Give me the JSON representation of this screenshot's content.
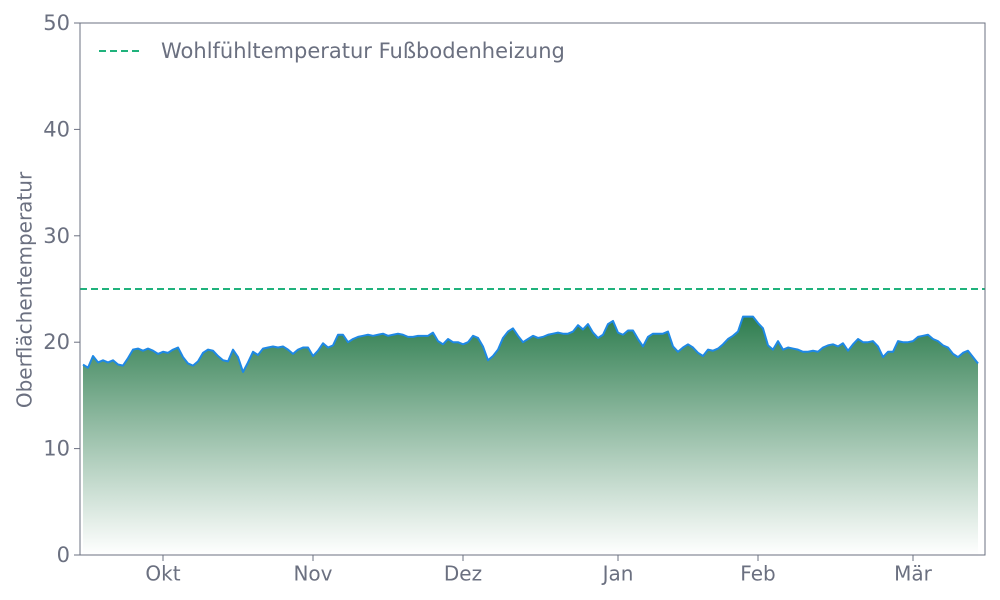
{
  "chart_data": {
    "type": "area",
    "y_label": "Oberflächentemperatur",
    "ylim": [
      0,
      50
    ],
    "yticks": [
      0,
      10,
      20,
      30,
      40,
      50
    ],
    "color": "#1e88e5",
    "fill_color": "#2e7d4f",
    "legend": "upper left",
    "reference_lines": [
      {
        "value": 25,
        "label": "Wohlfühltemperatur Fußbodenheizung",
        "color": "#20b27c"
      }
    ],
    "categories": [
      null,
      null,
      null,
      null,
      null,
      null,
      null,
      null,
      null,
      null,
      null,
      null,
      null,
      null,
      null,
      null,
      "Okt",
      null,
      null,
      null,
      null,
      null,
      null,
      null,
      null,
      null,
      null,
      null,
      null,
      null,
      null,
      null,
      null,
      null,
      null,
      null,
      null,
      null,
      null,
      null,
      null,
      null,
      null,
      null,
      null,
      null,
      "Nov",
      null,
      null,
      null,
      null,
      null,
      null,
      null,
      null,
      null,
      null,
      null,
      null,
      null,
      null,
      null,
      null,
      null,
      null,
      null,
      null,
      null,
      null,
      null,
      null,
      null,
      null,
      null,
      null,
      null,
      "Dez",
      null,
      null,
      null,
      null,
      null,
      null,
      null,
      null,
      null,
      null,
      null,
      null,
      null,
      null,
      null,
      null,
      null,
      null,
      null,
      null,
      null,
      null,
      null,
      null,
      null,
      null,
      null,
      null,
      null,
      null,
      "Jan",
      null,
      null,
      null,
      null,
      null,
      null,
      null,
      null,
      null,
      null,
      null,
      null,
      null,
      null,
      null,
      null,
      null,
      null,
      null,
      null,
      null,
      null,
      null,
      null,
      null,
      null,
      null,
      "Feb",
      null,
      null,
      null,
      null,
      null,
      null,
      null,
      null,
      null,
      null,
      null,
      null,
      null,
      null,
      null,
      null,
      null,
      null,
      null,
      null,
      null,
      null,
      null,
      null,
      null,
      null,
      null,
      null,
      null,
      null,
      "Mär",
      null,
      null,
      null,
      null,
      null,
      null,
      null,
      null,
      null,
      null,
      null,
      null,
      null
    ],
    "values": [
      17.9,
      17.6,
      18.7,
      18.1,
      18.3,
      18.1,
      18.3,
      17.9,
      17.8,
      18.5,
      19.3,
      19.4,
      19.2,
      19.4,
      19.2,
      18.9,
      19.1,
      19.0,
      19.3,
      19.5,
      18.6,
      18.0,
      17.8,
      18.2,
      19.0,
      19.3,
      19.2,
      18.7,
      18.3,
      18.2,
      19.3,
      18.6,
      17.2,
      18.1,
      19.1,
      18.8,
      19.4,
      19.5,
      19.6,
      19.5,
      19.6,
      19.3,
      18.9,
      19.3,
      19.5,
      19.5,
      18.7,
      19.2,
      19.9,
      19.5,
      19.7,
      20.7,
      20.7,
      20.0,
      20.3,
      20.5,
      20.6,
      20.7,
      20.6,
      20.7,
      20.8,
      20.6,
      20.7,
      20.8,
      20.7,
      20.5,
      20.5,
      20.6,
      20.6,
      20.6,
      20.9,
      20.1,
      19.8,
      20.3,
      20.0,
      20.0,
      19.8,
      20.0,
      20.6,
      20.4,
      19.6,
      18.3,
      18.7,
      19.3,
      20.4,
      21.0,
      21.3,
      20.6,
      20.0,
      20.3,
      20.6,
      20.4,
      20.5,
      20.7,
      20.8,
      20.9,
      20.8,
      20.8,
      21.0,
      21.6,
      21.2,
      21.7,
      20.9,
      20.4,
      20.7,
      21.7,
      22.0,
      20.9,
      20.7,
      21.1,
      21.1,
      20.3,
      19.6,
      20.5,
      20.8,
      20.8,
      20.8,
      21.0,
      19.6,
      19.1,
      19.5,
      19.8,
      19.5,
      19.0,
      18.7,
      19.3,
      19.2,
      19.4,
      19.8,
      20.3,
      20.6,
      21.0,
      22.4,
      22.4,
      22.4,
      21.8,
      21.3,
      19.7,
      19.3,
      20.1,
      19.3,
      19.5,
      19.4,
      19.3,
      19.1,
      19.1,
      19.2,
      19.1,
      19.5,
      19.7,
      19.8,
      19.6,
      19.9,
      19.2,
      19.8,
      20.3,
      20.0,
      20.0,
      20.1,
      19.6,
      18.6,
      19.1,
      19.1,
      20.1,
      20.0,
      20.0,
      20.1,
      20.5,
      20.6,
      20.7,
      20.3,
      20.1,
      19.7,
      19.5,
      18.9,
      18.6,
      19.0,
      19.2,
      18.6,
      18.0
    ]
  }
}
